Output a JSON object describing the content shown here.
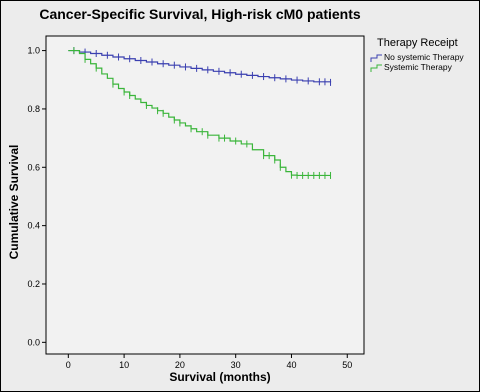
{
  "chart_data": {
    "type": "line",
    "title": "Cancer-Specific Survival, High-risk cM0 patients",
    "xlabel": "Survival (months)",
    "ylabel": "Cumulative Survival",
    "xlim": [
      -4,
      53
    ],
    "ylim": [
      -0.04,
      1.05
    ],
    "x_ticks": [
      0,
      10,
      20,
      30,
      40,
      50
    ],
    "y_ticks": [
      0.0,
      0.2,
      0.4,
      0.6,
      0.8,
      1.0
    ],
    "y_tick_labels": [
      "0.0",
      "0.2",
      "0.4",
      "0.6",
      "0.8",
      "1.0"
    ],
    "grid": false,
    "legend": {
      "title": "Therapy Receipt",
      "position": "right"
    },
    "step": true,
    "series": [
      {
        "name": "No systemic Therapy",
        "color": "#3a3fb0",
        "x": [
          0,
          2,
          4,
          6,
          8,
          10,
          12,
          14,
          16,
          18,
          20,
          22,
          24,
          26,
          28,
          30,
          32,
          34,
          36,
          38,
          40,
          42,
          44,
          47
        ],
        "y": [
          1.0,
          0.995,
          0.99,
          0.984,
          0.978,
          0.972,
          0.966,
          0.961,
          0.955,
          0.95,
          0.944,
          0.939,
          0.934,
          0.929,
          0.924,
          0.919,
          0.915,
          0.911,
          0.907,
          0.903,
          0.899,
          0.896,
          0.893,
          0.891
        ],
        "censored": [
          1,
          3,
          5,
          7,
          9,
          11,
          13,
          15,
          17,
          19,
          21,
          23,
          25,
          27,
          29,
          31,
          33,
          35,
          37,
          39,
          41,
          43,
          45,
          46,
          47
        ]
      },
      {
        "name": "Systemic Therapy",
        "color": "#3ab53a",
        "x": [
          0,
          2,
          3,
          4,
          5,
          6,
          7,
          8,
          9,
          10,
          11,
          12,
          13,
          14,
          15,
          16,
          17,
          18,
          19,
          20,
          21,
          22,
          23,
          25,
          27,
          29,
          31,
          33,
          35,
          37,
          38,
          39,
          40,
          41
        ],
        "y": [
          1.0,
          0.99,
          0.97,
          0.955,
          0.94,
          0.92,
          0.905,
          0.885,
          0.87,
          0.858,
          0.846,
          0.834,
          0.822,
          0.812,
          0.803,
          0.794,
          0.785,
          0.772,
          0.762,
          0.752,
          0.742,
          0.732,
          0.722,
          0.71,
          0.7,
          0.69,
          0.68,
          0.66,
          0.64,
          0.625,
          0.6,
          0.585,
          0.573,
          0.572
        ],
        "censored": [
          1,
          3,
          5,
          8,
          10,
          11,
          14,
          16,
          17,
          19,
          20,
          22,
          24,
          25,
          27,
          28,
          30,
          32,
          35,
          36,
          37,
          38,
          40,
          41,
          42,
          43,
          44,
          45,
          46,
          47
        ]
      }
    ]
  }
}
